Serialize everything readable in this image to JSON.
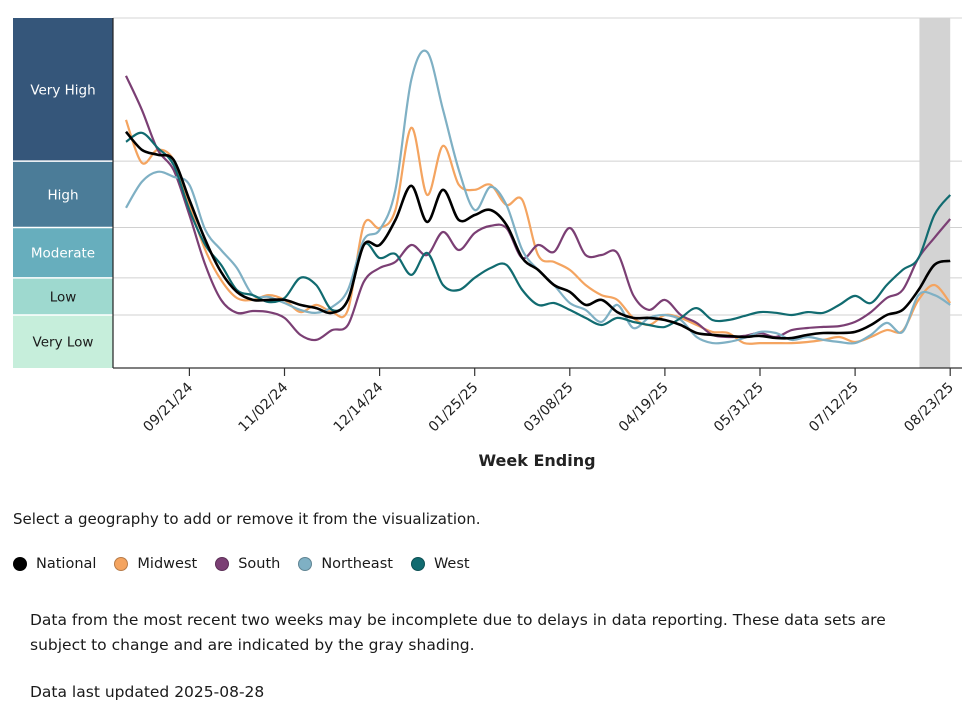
{
  "chart_data": {
    "type": "line",
    "xlabel": "Week Ending",
    "ylabel": "",
    "x_start": "2024-08-24",
    "x_step": "1 week",
    "ylim": [
      0,
      13.2
    ],
    "x_ticks": [
      {
        "index": 4,
        "label": "09/21/24"
      },
      {
        "index": 10,
        "label": "11/02/24"
      },
      {
        "index": 16,
        "label": "12/14/24"
      },
      {
        "index": 22,
        "label": "01/25/25"
      },
      {
        "index": 28,
        "label": "03/08/25"
      },
      {
        "index": 34,
        "label": "04/19/25"
      },
      {
        "index": 40,
        "label": "05/31/25"
      },
      {
        "index": 46,
        "label": "07/12/25"
      },
      {
        "index": 52,
        "label": "08/23/25"
      }
    ],
    "levels": [
      {
        "label": "Very Low",
        "min": 0,
        "max": 2,
        "color": "#c6eedb",
        "text": "#1a1a1a"
      },
      {
        "label": "Low",
        "min": 2,
        "max": 3.4,
        "color": "#9ed9cf",
        "text": "#1a1a1a"
      },
      {
        "label": "Moderate",
        "min": 3.4,
        "max": 5.3,
        "color": "#67aebd",
        "text": "#ffffff"
      },
      {
        "label": "High",
        "min": 5.3,
        "max": 7.8,
        "color": "#4b7c98",
        "text": "#ffffff"
      },
      {
        "label": "Very High",
        "min": 7.8,
        "max": 13.2,
        "color": "#35567a",
        "text": "#ffffff"
      }
    ],
    "incomplete_weeks": [
      51,
      52
    ],
    "series": [
      {
        "name": "National",
        "color": "#000000",
        "values": [
          8.91,
          8.23,
          8.04,
          7.85,
          6.34,
          4.83,
          3.62,
          2.87,
          2.57,
          2.57,
          2.57,
          2.38,
          2.26,
          2.08,
          2.57,
          4.64,
          4.64,
          5.58,
          6.87,
          5.51,
          6.72,
          5.58,
          5.77,
          5.96,
          5.4,
          4.15,
          3.7,
          3.13,
          2.87,
          2.38,
          2.57,
          2.11,
          1.89,
          1.89,
          1.81,
          1.62,
          1.32,
          1.25,
          1.21,
          1.17,
          1.21,
          1.13,
          1.13,
          1.25,
          1.32,
          1.32,
          1.36,
          1.62,
          2.0,
          2.19,
          2.94,
          3.89,
          4.04
        ]
      },
      {
        "name": "Midwest",
        "color": "#f4a460",
        "values": [
          9.36,
          7.74,
          8.23,
          7.85,
          6.15,
          4.45,
          3.32,
          2.64,
          2.57,
          2.75,
          2.57,
          2.11,
          2.38,
          2.11,
          2.19,
          5.4,
          5.28,
          5.96,
          9.06,
          6.53,
          8.38,
          6.91,
          6.72,
          6.91,
          6.15,
          6.34,
          4.26,
          4.0,
          3.7,
          3.13,
          2.75,
          2.57,
          1.89,
          1.62,
          2.0,
          1.89,
          1.62,
          1.36,
          1.32,
          0.94,
          0.94,
          0.94,
          0.94,
          0.98,
          1.06,
          1.17,
          0.98,
          1.17,
          1.43,
          1.4,
          2.57,
          3.13,
          2.45
        ]
      },
      {
        "name": "South",
        "color": "#7b3f74",
        "values": [
          11.02,
          9.74,
          8.23,
          7.47,
          5.77,
          3.89,
          2.57,
          2.08,
          2.15,
          2.11,
          1.89,
          1.25,
          1.06,
          1.43,
          1.62,
          3.25,
          3.77,
          4.0,
          4.64,
          4.26,
          5.13,
          4.45,
          5.09,
          5.36,
          5.28,
          4.15,
          4.64,
          4.38,
          5.28,
          4.26,
          4.26,
          4.34,
          2.75,
          2.19,
          2.57,
          2.0,
          1.7,
          1.25,
          1.17,
          1.21,
          1.32,
          1.17,
          1.43,
          1.51,
          1.55,
          1.58,
          1.74,
          2.11,
          2.64,
          2.94,
          4.15,
          4.91,
          5.62
        ]
      },
      {
        "name": "Northeast",
        "color": "#7fb0c4",
        "values": [
          6.04,
          7.02,
          7.4,
          7.21,
          6.91,
          5.21,
          4.45,
          3.77,
          2.75,
          2.68,
          2.45,
          2.19,
          2.08,
          2.3,
          2.94,
          4.83,
          5.21,
          6.72,
          10.87,
          11.92,
          9.74,
          7.47,
          5.96,
          6.83,
          6.15,
          4.45,
          3.7,
          3.13,
          2.45,
          2.19,
          1.74,
          2.38,
          1.51,
          1.89,
          2.0,
          1.81,
          1.17,
          0.94,
          0.98,
          1.13,
          1.36,
          1.32,
          1.06,
          1.17,
          1.06,
          0.98,
          0.94,
          1.25,
          1.7,
          1.36,
          2.75,
          2.75,
          2.38
        ]
      },
      {
        "name": "West",
        "color": "#116b70",
        "values": [
          8.53,
          8.87,
          8.3,
          7.66,
          5.96,
          4.64,
          3.89,
          2.94,
          2.75,
          2.49,
          2.64,
          3.4,
          3.13,
          2.19,
          2.57,
          4.64,
          4.15,
          4.3,
          3.51,
          4.34,
          3.13,
          2.94,
          3.4,
          3.77,
          3.89,
          2.94,
          2.38,
          2.45,
          2.19,
          1.89,
          1.62,
          1.89,
          1.74,
          1.62,
          1.55,
          1.89,
          2.26,
          1.81,
          1.81,
          1.96,
          2.11,
          2.08,
          2.0,
          2.11,
          2.08,
          2.38,
          2.72,
          2.45,
          3.13,
          3.7,
          4.15,
          5.77,
          6.53
        ]
      }
    ]
  },
  "instructions": "Select a geography to add or remove it from the visualization.",
  "note": "Data from the most recent two weeks may be incomplete due to delays in data reporting. These data sets are subject to change and are indicated by the gray shading.",
  "updated": "Data last updated 2025-08-28"
}
